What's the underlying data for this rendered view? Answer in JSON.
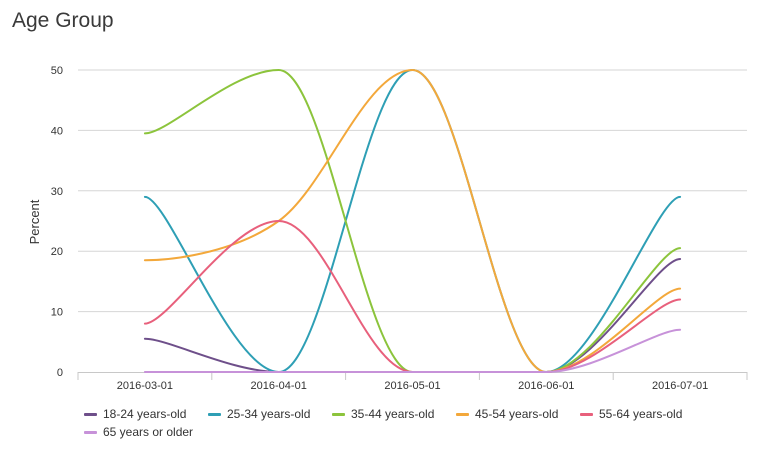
{
  "chart_data": {
    "type": "line",
    "title": "Age Group",
    "xlabel": "",
    "ylabel": "Percent",
    "ylim": [
      0,
      50
    ],
    "yticks": [
      0,
      10,
      20,
      30,
      40,
      50
    ],
    "grid": true,
    "legend_position": "bottom",
    "categories": [
      "2016-03-01",
      "2016-04-01",
      "2016-05-01",
      "2016-06-01",
      "2016-07-01"
    ],
    "series": [
      {
        "name": "18-24 years-old",
        "color": "#6e4f8a",
        "values": [
          5.5,
          0,
          0,
          0,
          18.7
        ]
      },
      {
        "name": "25-34 years-old",
        "color": "#2e9fb5",
        "values": [
          29,
          0,
          50,
          0,
          29
        ]
      },
      {
        "name": "35-44 years-old",
        "color": "#8cc43c",
        "values": [
          39.5,
          50,
          0,
          0,
          20.5
        ]
      },
      {
        "name": "45-54 years-old",
        "color": "#f3a83b",
        "values": [
          18.5,
          25,
          50,
          0,
          13.8
        ]
      },
      {
        "name": "55-64 years-old",
        "color": "#e8607c",
        "values": [
          8,
          25,
          0,
          0,
          12
        ]
      },
      {
        "name": "65 years or older",
        "color": "#c792d9",
        "values": [
          0,
          0,
          0,
          0,
          7
        ]
      }
    ]
  }
}
